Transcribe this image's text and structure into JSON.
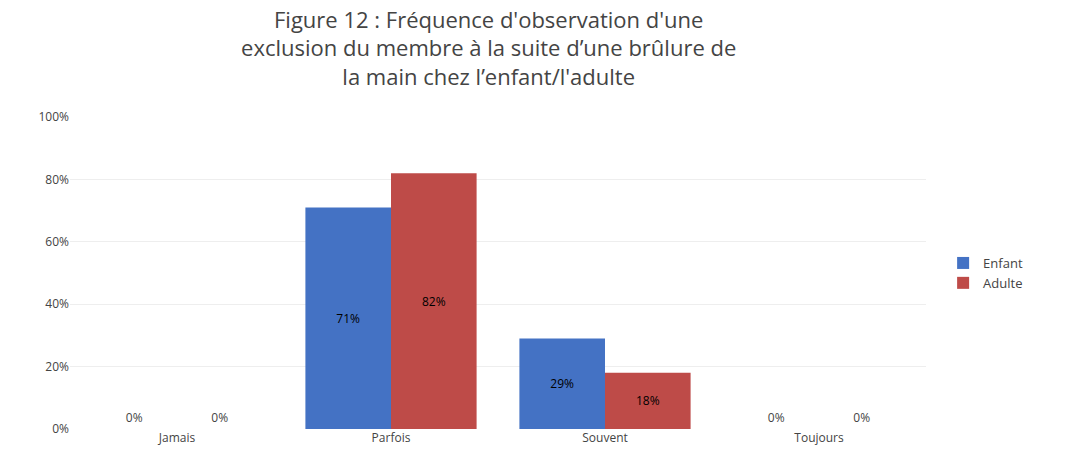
{
  "chart_data": {
    "type": "bar",
    "title": "Figure 12 : Fréquence d'observation d'une\nexclusion du membre à la suite d’une brûlure de\nla main chez l’enfant/l'adulte",
    "categories": [
      "Jamais",
      "Parfois",
      "Souvent",
      "Toujours"
    ],
    "series": [
      {
        "name": "Enfant",
        "color": "#4472C4",
        "values": [
          0,
          71,
          29,
          0
        ],
        "value_labels": [
          "0%",
          "71%",
          "29%",
          "0%"
        ]
      },
      {
        "name": "Adulte",
        "color": "#BE4B48",
        "values": [
          0,
          82,
          18,
          0
        ],
        "value_labels": [
          "0%",
          "82%",
          "18%",
          "0%"
        ]
      }
    ],
    "ylim": [
      0,
      100
    ],
    "yticks": [
      {
        "value": 0,
        "label": "0%"
      },
      {
        "value": 20,
        "label": "20%"
      },
      {
        "value": 40,
        "label": "40%"
      },
      {
        "value": 60,
        "label": "60%"
      },
      {
        "value": 80,
        "label": "80%"
      },
      {
        "value": 100,
        "label": "100%"
      }
    ],
    "grid": true,
    "data_labels": true,
    "legend": "right"
  }
}
